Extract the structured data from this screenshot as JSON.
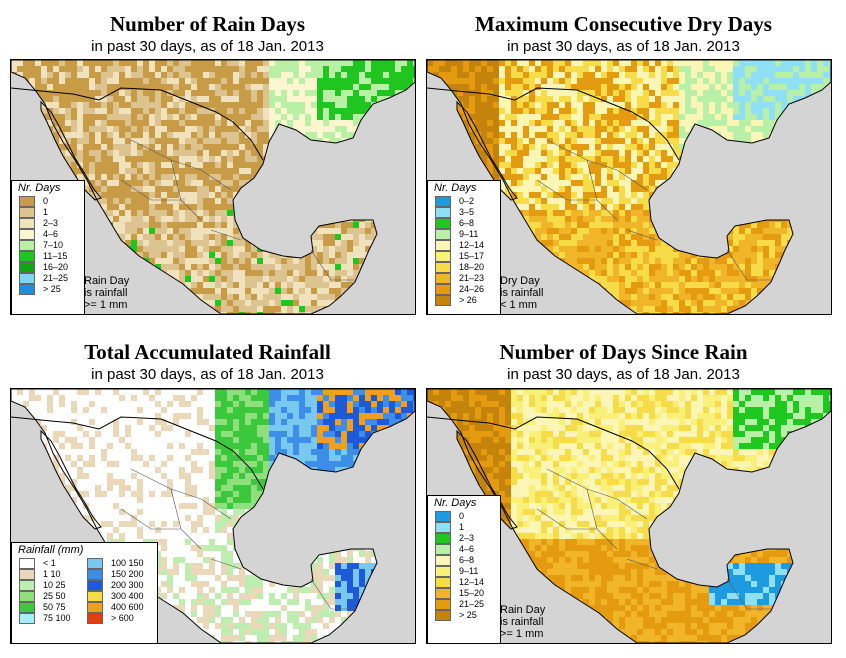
{
  "panels": {
    "rain_days": {
      "title": "Number of Rain Days",
      "subtitle": "in past 30 days, as of  18 Jan. 2013",
      "legend_title": "Nr. Days",
      "legend": [
        {
          "label": "0",
          "color": "#c89b47"
        },
        {
          "label": "1",
          "color": "#dcc38f"
        },
        {
          "label": "2–3",
          "color": "#f0e2bd"
        },
        {
          "label": "4–6",
          "color": "#fbf6cf"
        },
        {
          "label": "7–10",
          "color": "#b9f0a5"
        },
        {
          "label": "11–15",
          "color": "#1fc61f"
        },
        {
          "label": "16–20",
          "color": "#11a611"
        },
        {
          "label": "21–25",
          "color": "#7fd6f2"
        },
        {
          "label": "> 25",
          "color": "#1e8fdd"
        }
      ],
      "note": [
        "Rain Day",
        "is rainfall",
        ">= 1 mm"
      ]
    },
    "dry_days": {
      "title": "Maximum Consecutive Dry Days",
      "subtitle": "in past 30 days, as of  18 Jan. 2013",
      "legend_title": "Nr. Days",
      "legend": [
        {
          "label": "0–2",
          "color": "#1e9be0"
        },
        {
          "label": "3–5",
          "color": "#8fe0f5"
        },
        {
          "label": "6–8",
          "color": "#1ec81e"
        },
        {
          "label": "9–11",
          "color": "#b8f0a8"
        },
        {
          "label": "12–14",
          "color": "#fbf6b6"
        },
        {
          "label": "15–17",
          "color": "#f8f079"
        },
        {
          "label": "18–20",
          "color": "#f7dc4a"
        },
        {
          "label": "21–23",
          "color": "#f1b52a"
        },
        {
          "label": "24–26",
          "color": "#e49b10"
        },
        {
          "label": "> 26",
          "color": "#c4840c"
        }
      ],
      "note": [
        "Dry Day",
        "is rainfall",
        "< 1 mm"
      ]
    },
    "accum_rain": {
      "title": "Total Accumulated Rainfall",
      "subtitle": "in past 30 days, as of  18 Jan. 2013",
      "legend_title": "Rainfall (mm)",
      "legend_col1": [
        {
          "label": "< 1",
          "color": "#ffffff"
        },
        {
          "label": "1    10",
          "color": "#ead8b8"
        },
        {
          "label": "10    25",
          "color": "#bdeeb0"
        },
        {
          "label": "25    50",
          "color": "#8fe07d"
        },
        {
          "label": "50    75",
          "color": "#3cc83c"
        },
        {
          "label": "75  100",
          "color": "#a8eef8"
        }
      ],
      "legend_col2": [
        {
          "label": "100  150",
          "color": "#78c8f0"
        },
        {
          "label": "150  200",
          "color": "#3c8ee8"
        },
        {
          "label": "200  300",
          "color": "#1e5ad8"
        },
        {
          "label": "300  400",
          "color": "#f5dc46"
        },
        {
          "label": "400  600",
          "color": "#f0a01e"
        },
        {
          "label": "> 600",
          "color": "#e63c0a"
        }
      ]
    },
    "since_rain": {
      "title": "Number of Days Since Rain",
      "subtitle": "in past 30 days, as of  18 Jan. 2013",
      "legend_title": "Nr. Days",
      "legend": [
        {
          "label": "0",
          "color": "#1e9be0"
        },
        {
          "label": "1",
          "color": "#8fe0f5"
        },
        {
          "label": "2–3",
          "color": "#1ec81e"
        },
        {
          "label": "4–6",
          "color": "#b8f0a8"
        },
        {
          "label": "6–8",
          "color": "#fbf6b6"
        },
        {
          "label": "9–11",
          "color": "#f8f079"
        },
        {
          "label": "12–14",
          "color": "#f7dc4a"
        },
        {
          "label": "15–20",
          "color": "#f1b52a"
        },
        {
          "label": "21–25",
          "color": "#e49b10"
        },
        {
          "label": "> 25",
          "color": "#c4840c"
        }
      ],
      "note": [
        "Rain Day",
        "is rainfall",
        ">= 1 mm"
      ]
    }
  },
  "colors": {
    "ocean": "#d4d4d4",
    "boundary": "#000000"
  }
}
